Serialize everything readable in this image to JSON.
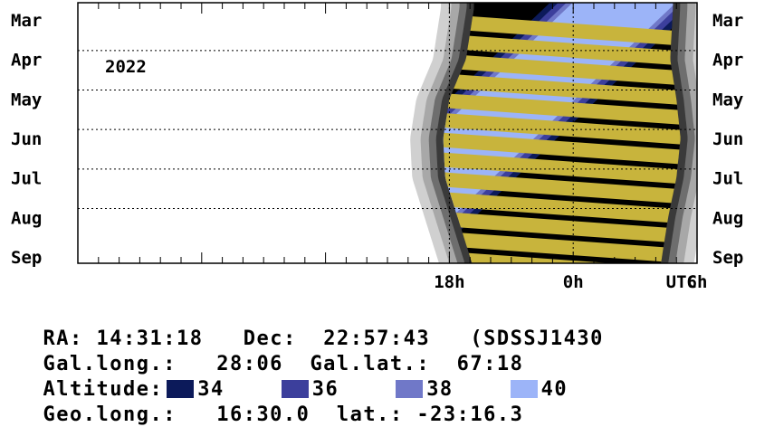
{
  "chart_data": {
    "type": "heatmap",
    "title": "",
    "year_label": "2022",
    "months": [
      "Mar",
      "Apr",
      "May",
      "Jun",
      "Jul",
      "Aug",
      "Sep"
    ],
    "x_ticks": [
      "18h",
      "0h",
      "6h",
      "UTC"
    ],
    "xlim_hours": [
      -24,
      6
    ],
    "grid": true,
    "night_window_hours": [
      {
        "month": "Mar",
        "start": -4.9,
        "end": 4.8
      },
      {
        "month": "Apr",
        "start": -5.2,
        "end": 4.7
      },
      {
        "month": "May",
        "start": -6.0,
        "end": 5.0
      },
      {
        "month": "Jun",
        "start": -6.3,
        "end": 5.2
      },
      {
        "month": "Jul",
        "start": -6.2,
        "end": 5.0
      },
      {
        "month": "Aug",
        "start": -5.6,
        "end": 4.6
      },
      {
        "month": "Sep",
        "start": -5.0,
        "end": 4.3
      }
    ],
    "legend_title": "Altitude:",
    "legend": [
      {
        "label": "34",
        "color": "#0c1a5a"
      },
      {
        "label": "36",
        "color": "#3c3f9c"
      },
      {
        "label": "38",
        "color": "#7078c8"
      },
      {
        "label": "40",
        "color": "#9cb4f8"
      }
    ],
    "colors": {
      "night": "#000000",
      "moon": "#c8b43c",
      "twilight": [
        "#3a3a3a",
        "#6e6e6e",
        "#a8a8a8",
        "#d0d0d0"
      ]
    }
  },
  "info": {
    "ra_label": "RA:",
    "ra_value": "14:31:18",
    "dec_label": "Dec:",
    "dec_value": "22:57:43",
    "object_name": "(SDSSJ1430",
    "gal_long_label": "Gal.long.:",
    "gal_long_value": "28:06",
    "gal_lat_label": "Gal.lat.:",
    "gal_lat_value": "67:18",
    "altitude_label": "Altitude:",
    "geo_long_label": "Geo.long.:",
    "geo_long_value": "16:30.0",
    "lat_label": "lat.:",
    "lat_value": "-23:16.3"
  }
}
